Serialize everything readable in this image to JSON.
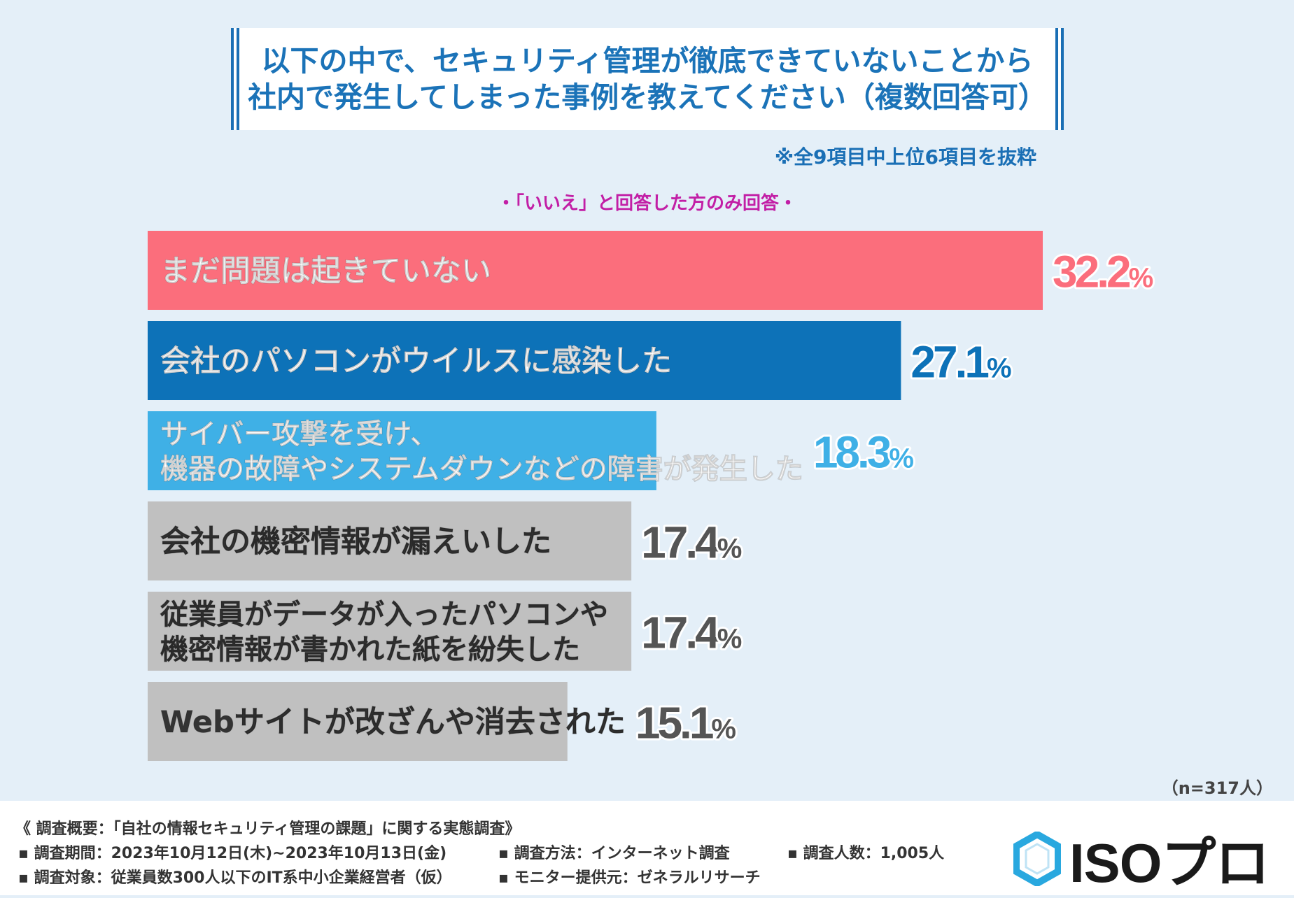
{
  "header": {
    "title_line1": "以下の中で、セキュリティ管理が徹底できていないことから",
    "title_line2": "社内で発生してしまった事例を教えてください（複数回答可）",
    "note": "※全9項目中上位6項目を抜粋",
    "subtitle": "・「いいえ」と回答した方のみ回答・"
  },
  "chart_data": {
    "type": "bar",
    "orientation": "horizontal",
    "categories": [
      [
        "まだ問題は起きていない"
      ],
      [
        "会社のパソコンがウイルスに感染した"
      ],
      [
        "サイバー攻撃を受け、",
        "機器の故障やシステムダウンなどの障害が発生した"
      ],
      [
        "会社の機密情報が漏えいした"
      ],
      [
        "従業員がデータが入ったパソコンや",
        "機密情報が書かれた紙を紛失した"
      ],
      [
        "Webサイトが改ざんや消去された"
      ]
    ],
    "values": [
      32.2,
      27.1,
      18.3,
      17.4,
      17.4,
      15.1
    ],
    "value_labels": [
      "32.2",
      "27.1",
      "18.3",
      "17.4",
      "17.4",
      "15.1"
    ],
    "unit": "%",
    "bar_colors": [
      "#fb6e7c",
      "#0d72b8",
      "#3fb0e6",
      "#c0c0c0",
      "#c0c0c0",
      "#c0c0c0"
    ],
    "label_colors": [
      "#ffffff",
      "#ffffff",
      "#ffffff",
      "#333333",
      "#333333",
      "#333333"
    ],
    "value_colors": [
      "#fb6e7c",
      "#0d72b8",
      "#3fb0e6",
      "#555555",
      "#555555",
      "#555555"
    ],
    "n_label": "（n=317人）"
  },
  "footer": {
    "summary": "《 調査概要：「自社の情報セキュリティ管理の課題」に関する実態調査》",
    "period": "▪ 調査期間：2023年10月12日(木)~2023年10月13日(金)",
    "method": "▪ 調査方法：インターネット調査",
    "count": "▪ 調査人数：1,005人",
    "target": "▪ 調査対象：従業員数300人以下のIT系中小企業経営者（仮）",
    "provider": "▪ モニター提供元：ゼネラルリサーチ"
  },
  "logo": {
    "text": "ISOプロ",
    "icon": "hexagon-logo-icon",
    "color": "#29a8df"
  }
}
